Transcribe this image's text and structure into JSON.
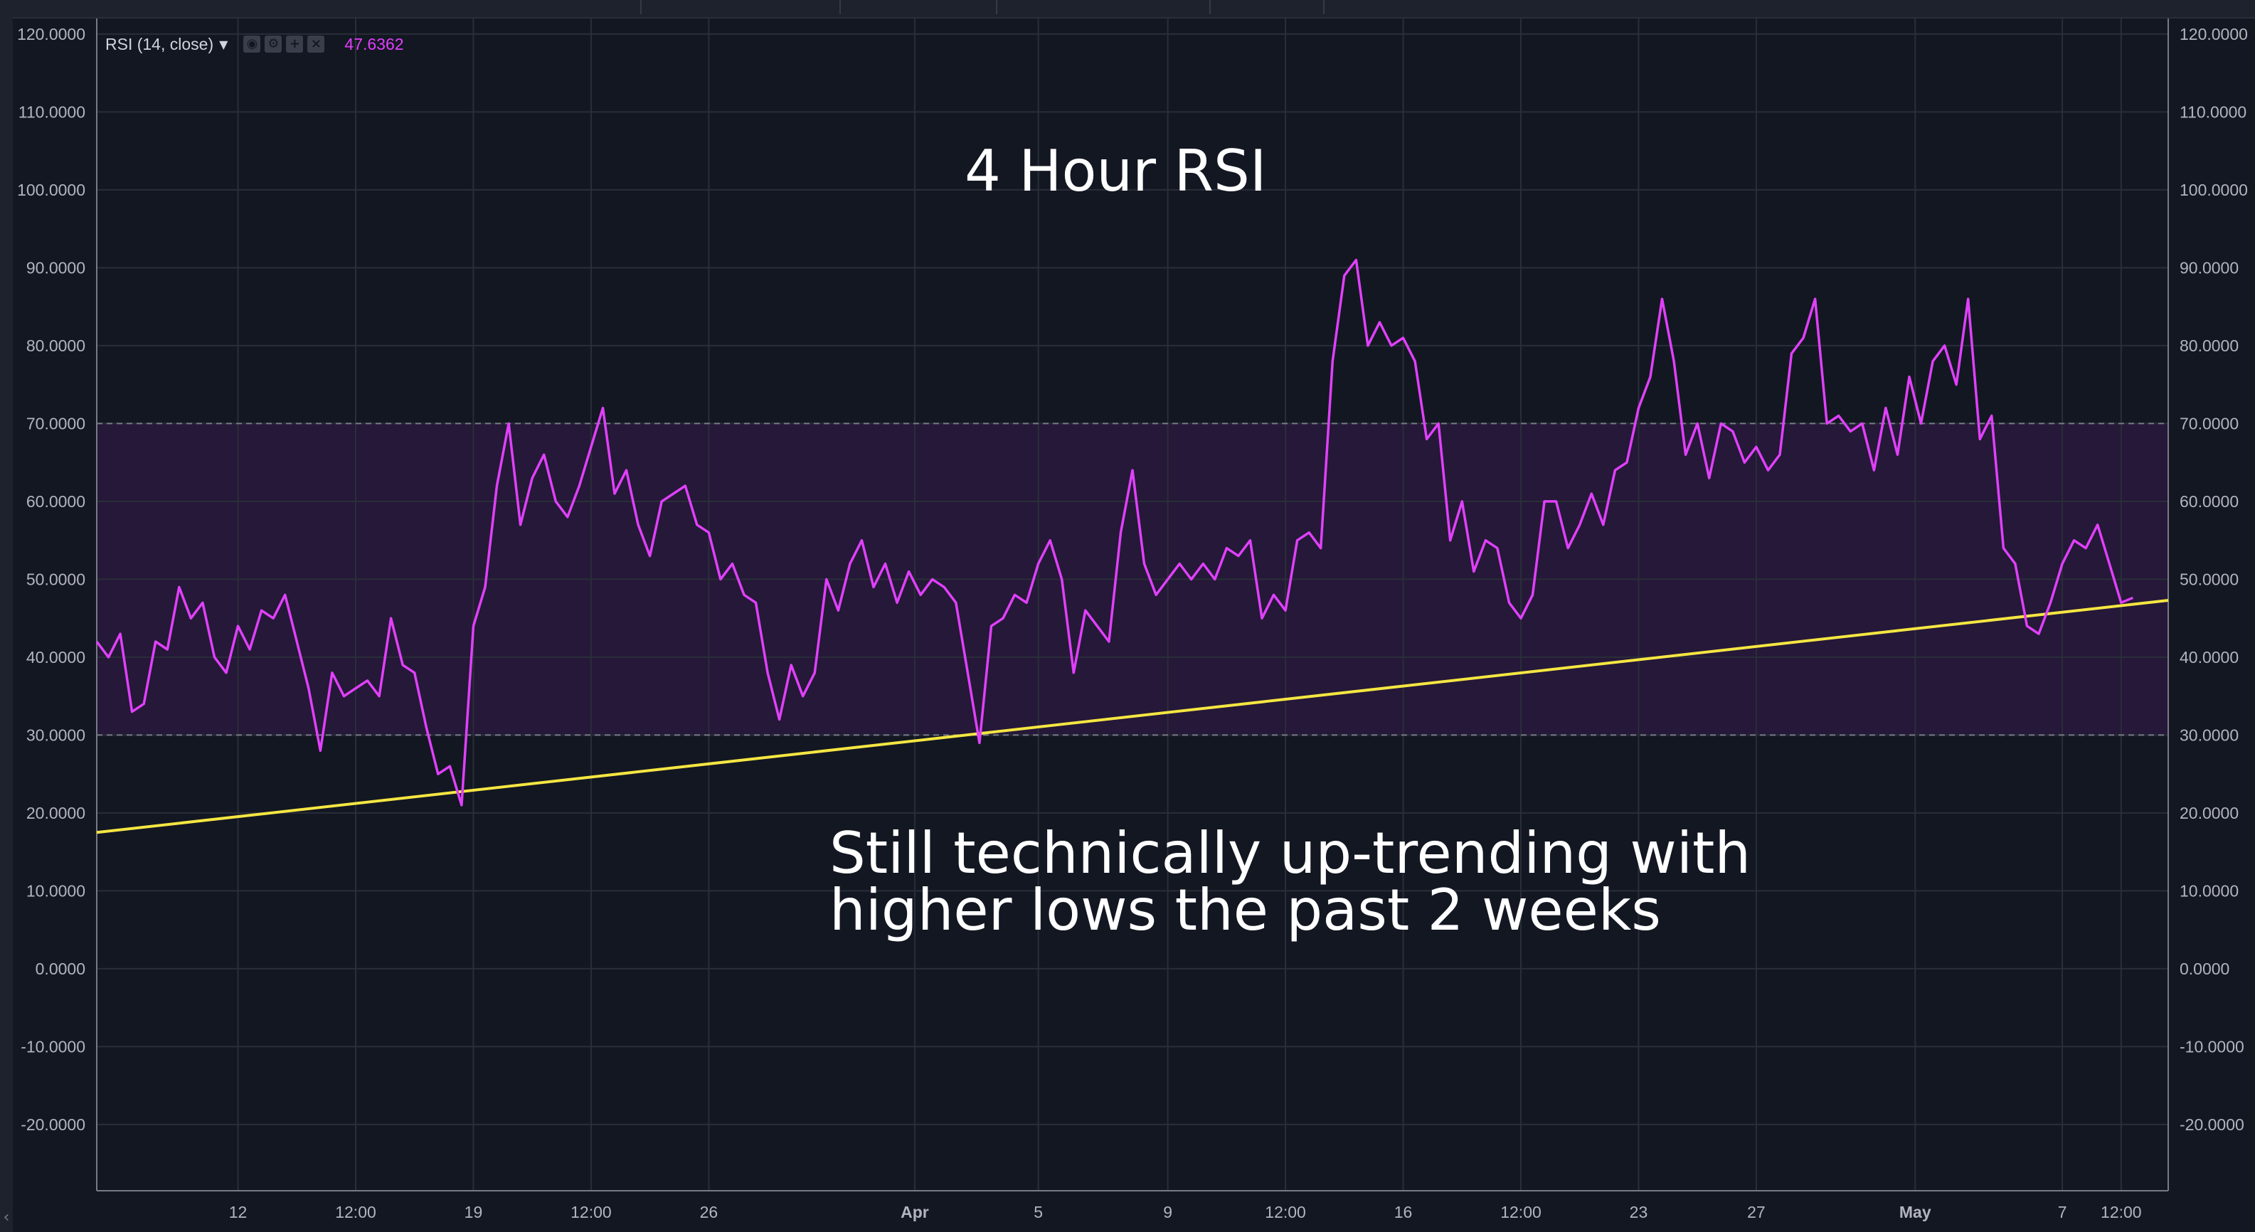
{
  "indicator": {
    "name": "RSI (14, close)",
    "value": "47.6362",
    "line_color": "#e040fb",
    "band_color": "#7b1fa2",
    "trendline_color": "#f5e642",
    "icons": [
      "eye-icon",
      "gear-icon",
      "plus-icon",
      "close-icon"
    ]
  },
  "annotations": {
    "title": "4 Hour RSI",
    "note_line1": "Still technically up-trending with",
    "note_line2": "higher lows the past 2 weeks"
  },
  "chart_data": {
    "type": "line",
    "title": "4 Hour RSI",
    "xlabel": "",
    "ylabel": "",
    "ylim": [
      -28.5,
      122
    ],
    "y_ticks": [
      "120.0000",
      "110.0000",
      "100.0000",
      "90.0000",
      "80.0000",
      "70.0000",
      "60.0000",
      "50.0000",
      "40.0000",
      "30.0000",
      "20.0000",
      "10.0000",
      "0.0000",
      "-10.0000",
      "-20.0000"
    ],
    "y_tick_values": [
      120,
      110,
      100,
      90,
      80,
      70,
      60,
      50,
      40,
      30,
      20,
      10,
      0,
      -10,
      -20
    ],
    "x_range_days": [
      9.6,
      44.8
    ],
    "x_ticks": [
      {
        "label": "12",
        "day": 12.0,
        "bold": false
      },
      {
        "label": "12:00",
        "day": 14.0,
        "bold": false
      },
      {
        "label": "19",
        "day": 16.0,
        "bold": false
      },
      {
        "label": "12:00",
        "day": 18.0,
        "bold": false
      },
      {
        "label": "26",
        "day": 20.0,
        "bold": false
      },
      {
        "label": "Apr",
        "day": 23.5,
        "bold": true
      },
      {
        "label": "5",
        "day": 25.6,
        "bold": false
      },
      {
        "label": "9",
        "day": 27.8,
        "bold": false
      },
      {
        "label": "12:00",
        "day": 29.8,
        "bold": false
      },
      {
        "label": "16",
        "day": 31.8,
        "bold": false
      },
      {
        "label": "12:00",
        "day": 33.8,
        "bold": false
      },
      {
        "label": "23",
        "day": 35.8,
        "bold": false
      },
      {
        "label": "27",
        "day": 37.8,
        "bold": false
      },
      {
        "label": "May",
        "day": 40.5,
        "bold": true
      },
      {
        "label": "7",
        "day": 43.0,
        "bold": false
      },
      {
        "label": "12:00",
        "day": 44.0,
        "bold": false
      }
    ],
    "overbought": 70,
    "oversold": 30,
    "grid": true,
    "series": [
      {
        "values": [
          [
            9.6,
            42
          ],
          [
            9.8,
            40
          ],
          [
            10.0,
            43
          ],
          [
            10.2,
            33
          ],
          [
            10.4,
            34
          ],
          [
            10.6,
            42
          ],
          [
            10.8,
            41
          ],
          [
            11.0,
            49
          ],
          [
            11.2,
            45
          ],
          [
            11.4,
            47
          ],
          [
            11.6,
            40
          ],
          [
            11.8,
            38
          ],
          [
            12.0,
            44
          ],
          [
            12.2,
            41
          ],
          [
            12.4,
            46
          ],
          [
            12.6,
            45
          ],
          [
            12.8,
            48
          ],
          [
            13.0,
            42
          ],
          [
            13.2,
            36
          ],
          [
            13.4,
            28
          ],
          [
            13.6,
            38
          ],
          [
            13.8,
            35
          ],
          [
            14.0,
            36
          ],
          [
            14.2,
            37
          ],
          [
            14.4,
            35
          ],
          [
            14.6,
            45
          ],
          [
            14.8,
            39
          ],
          [
            15.0,
            38
          ],
          [
            15.2,
            31
          ],
          [
            15.4,
            25
          ],
          [
            15.6,
            26
          ],
          [
            15.8,
            21
          ],
          [
            16.0,
            44
          ],
          [
            16.2,
            49
          ],
          [
            16.4,
            62
          ],
          [
            16.6,
            70
          ],
          [
            16.8,
            57
          ],
          [
            17.0,
            63
          ],
          [
            17.2,
            66
          ],
          [
            17.4,
            60
          ],
          [
            17.6,
            58
          ],
          [
            17.8,
            62
          ],
          [
            18.0,
            67
          ],
          [
            18.2,
            72
          ],
          [
            18.4,
            61
          ],
          [
            18.6,
            64
          ],
          [
            18.8,
            57
          ],
          [
            19.0,
            53
          ],
          [
            19.2,
            60
          ],
          [
            19.4,
            61
          ],
          [
            19.6,
            62
          ],
          [
            19.8,
            57
          ],
          [
            20.0,
            56
          ],
          [
            20.2,
            50
          ],
          [
            20.4,
            52
          ],
          [
            20.6,
            48
          ],
          [
            20.8,
            47
          ],
          [
            21.0,
            38
          ],
          [
            21.2,
            32
          ],
          [
            21.4,
            39
          ],
          [
            21.6,
            35
          ],
          [
            21.8,
            38
          ],
          [
            22.0,
            50
          ],
          [
            22.2,
            46
          ],
          [
            22.4,
            52
          ],
          [
            22.6,
            55
          ],
          [
            22.8,
            49
          ],
          [
            23.0,
            52
          ],
          [
            23.2,
            47
          ],
          [
            23.4,
            51
          ],
          [
            23.6,
            48
          ],
          [
            23.8,
            50
          ],
          [
            24.0,
            49
          ],
          [
            24.2,
            47
          ],
          [
            24.4,
            38
          ],
          [
            24.6,
            29
          ],
          [
            24.8,
            44
          ],
          [
            25.0,
            45
          ],
          [
            25.2,
            48
          ],
          [
            25.4,
            47
          ],
          [
            25.6,
            52
          ],
          [
            25.8,
            55
          ],
          [
            26.0,
            50
          ],
          [
            26.2,
            38
          ],
          [
            26.4,
            46
          ],
          [
            26.6,
            44
          ],
          [
            26.8,
            42
          ],
          [
            27.0,
            56
          ],
          [
            27.2,
            64
          ],
          [
            27.4,
            52
          ],
          [
            27.6,
            48
          ],
          [
            27.8,
            50
          ],
          [
            28.0,
            52
          ],
          [
            28.2,
            50
          ],
          [
            28.4,
            52
          ],
          [
            28.6,
            50
          ],
          [
            28.8,
            54
          ],
          [
            29.0,
            53
          ],
          [
            29.2,
            55
          ],
          [
            29.4,
            45
          ],
          [
            29.6,
            48
          ],
          [
            29.8,
            46
          ],
          [
            30.0,
            55
          ],
          [
            30.2,
            56
          ],
          [
            30.4,
            54
          ],
          [
            30.6,
            78
          ],
          [
            30.8,
            89
          ],
          [
            31.0,
            91
          ],
          [
            31.2,
            80
          ],
          [
            31.4,
            83
          ],
          [
            31.6,
            80
          ],
          [
            31.8,
            81
          ],
          [
            32.0,
            78
          ],
          [
            32.2,
            68
          ],
          [
            32.4,
            70
          ],
          [
            32.6,
            55
          ],
          [
            32.8,
            60
          ],
          [
            33.0,
            51
          ],
          [
            33.2,
            55
          ],
          [
            33.4,
            54
          ],
          [
            33.6,
            47
          ],
          [
            33.8,
            45
          ],
          [
            34.0,
            48
          ],
          [
            34.2,
            60
          ],
          [
            34.4,
            60
          ],
          [
            34.6,
            54
          ],
          [
            34.8,
            57
          ],
          [
            35.0,
            61
          ],
          [
            35.2,
            57
          ],
          [
            35.4,
            64
          ],
          [
            35.6,
            65
          ],
          [
            35.8,
            72
          ],
          [
            36.0,
            76
          ],
          [
            36.2,
            86
          ],
          [
            36.4,
            78
          ],
          [
            36.6,
            66
          ],
          [
            36.8,
            70
          ],
          [
            37.0,
            63
          ],
          [
            37.2,
            70
          ],
          [
            37.4,
            69
          ],
          [
            37.6,
            65
          ],
          [
            37.8,
            67
          ],
          [
            38.0,
            64
          ],
          [
            38.2,
            66
          ],
          [
            38.4,
            79
          ],
          [
            38.6,
            81
          ],
          [
            38.8,
            86
          ],
          [
            39.0,
            70
          ],
          [
            39.2,
            71
          ],
          [
            39.4,
            69
          ],
          [
            39.6,
            70
          ],
          [
            39.8,
            64
          ],
          [
            40.0,
            72
          ],
          [
            40.2,
            66
          ],
          [
            40.4,
            76
          ],
          [
            40.6,
            70
          ],
          [
            40.8,
            78
          ],
          [
            41.0,
            80
          ],
          [
            41.2,
            75
          ],
          [
            41.4,
            86
          ],
          [
            41.6,
            68
          ],
          [
            41.8,
            71
          ],
          [
            42.0,
            54
          ],
          [
            42.2,
            52
          ],
          [
            42.4,
            44
          ],
          [
            42.6,
            43
          ],
          [
            42.8,
            47
          ],
          [
            43.0,
            52
          ],
          [
            43.2,
            55
          ],
          [
            43.4,
            54
          ],
          [
            43.6,
            57
          ],
          [
            43.8,
            52
          ],
          [
            44.0,
            47
          ],
          [
            44.2,
            47.6362
          ]
        ]
      }
    ],
    "trendline": {
      "x": [
        9.6,
        44.8
      ],
      "y": [
        17.5,
        47.3
      ]
    }
  }
}
